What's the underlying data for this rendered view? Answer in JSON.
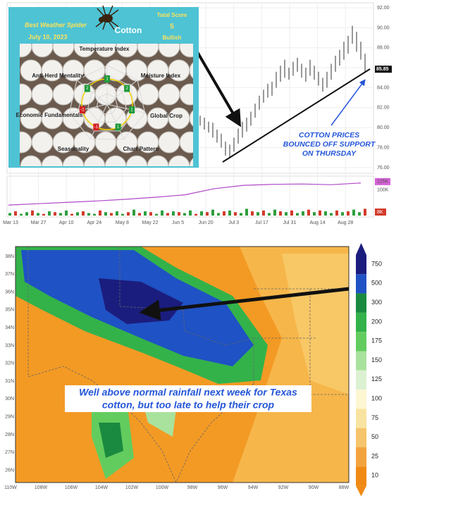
{
  "spider": {
    "title": "Best Weather Spider",
    "date": "July 10, 2023",
    "commodity": "Cotton",
    "score_label": "Total Score",
    "score": "5",
    "verdict": "Bullish",
    "factors": [
      {
        "name": "Temperature Index",
        "score": "1"
      },
      {
        "name": "Moisture Index",
        "score": "2"
      },
      {
        "name": "Global Crop",
        "score": "1"
      },
      {
        "name": "Chart Pattern",
        "score": "1"
      },
      {
        "name": "Seasonality",
        "score": "-1"
      },
      {
        "name": "Economic Fundamentals",
        "score": "-1"
      },
      {
        "name": "Anti-Herd Mentality",
        "score": "2"
      }
    ]
  },
  "price_chart": {
    "ylim": [
      75.5,
      92.5
    ],
    "yticks": [
      {
        "value": 92,
        "label": "92.00"
      },
      {
        "value": 90,
        "label": "90.00"
      },
      {
        "value": 88,
        "label": "88.00"
      },
      {
        "value": 86,
        "label": "86.00"
      },
      {
        "value": 84,
        "label": "84.00"
      },
      {
        "value": 82,
        "label": "82.00"
      },
      {
        "value": 80,
        "label": "80.00"
      },
      {
        "value": 78,
        "label": "78.00"
      },
      {
        "value": 76,
        "label": "76.00"
      }
    ],
    "last": {
      "value": 85.85,
      "label": "85.85"
    },
    "bars": [
      [
        80.2,
        81.2
      ],
      [
        79.8,
        81
      ],
      [
        79.5,
        80.6
      ],
      [
        79,
        80.5
      ],
      [
        78.5,
        79.8
      ],
      [
        78,
        79.4
      ],
      [
        77.2,
        78.6
      ],
      [
        77,
        78.3
      ],
      [
        77.6,
        79
      ],
      [
        78.4,
        79.9
      ],
      [
        79,
        80.6
      ],
      [
        79.6,
        81
      ],
      [
        80.2,
        81.6
      ],
      [
        81,
        82.4
      ],
      [
        81.8,
        83.2
      ],
      [
        82.5,
        83.8
      ],
      [
        83,
        84.4
      ],
      [
        83.2,
        84.6
      ],
      [
        84,
        85.6
      ],
      [
        84.6,
        86.2
      ],
      [
        85,
        86.8
      ],
      [
        84.8,
        86
      ],
      [
        85.2,
        86.6
      ],
      [
        85.6,
        87
      ],
      [
        85,
        86.4
      ],
      [
        84.6,
        86
      ],
      [
        85.2,
        86.8
      ],
      [
        84.8,
        86.2
      ],
      [
        84.2,
        85.6
      ],
      [
        83.6,
        85
      ],
      [
        84,
        85.6
      ],
      [
        84.8,
        86.4
      ],
      [
        85.6,
        87.2
      ],
      [
        86.2,
        87.8
      ],
      [
        86.8,
        88.6
      ],
      [
        87.4,
        89.2
      ],
      [
        88.4,
        90.2
      ],
      [
        87.6,
        89.6
      ],
      [
        86.8,
        88.6
      ],
      [
        85.6,
        87.4
      ]
    ],
    "annotation": [
      "COTTON PRICES",
      "BOUNCED OFF SUPPORT",
      "ON THURSDAY"
    ],
    "dates": [
      "Mar 13",
      "Mar 27",
      "Apr 10",
      "Apr 24",
      "May 8",
      "May 22",
      "Jun 5",
      "Jun 20",
      "Jul 3",
      "Jul 17",
      "Jul 31",
      "Aug 14",
      "Aug 28"
    ],
    "oi_ylim": [
      50,
      135
    ],
    "oi_labels": [
      {
        "value": 125,
        "label": "125K"
      },
      {
        "value": 100,
        "label": "100K"
      }
    ],
    "open_interest": [
      56,
      60,
      64,
      68,
      73,
      79,
      86,
      104,
      114,
      117,
      118,
      116,
      121
    ],
    "volume_label": "8K",
    "volume_max": 10,
    "volume": [
      3,
      5,
      2,
      4,
      6,
      3,
      2,
      5,
      4,
      3,
      6,
      2,
      4,
      5,
      3,
      2,
      6,
      4,
      3,
      5,
      2,
      4,
      7,
      3,
      5,
      4,
      2,
      6,
      3,
      5,
      4,
      3,
      6,
      2,
      5,
      4,
      7,
      3,
      5,
      6,
      4,
      3,
      8,
      5,
      4,
      6,
      3,
      7,
      5,
      4,
      6,
      3,
      5,
      7,
      4,
      6,
      5,
      3,
      6,
      4,
      5,
      7,
      4,
      8
    ],
    "volume_up": [
      1,
      0,
      1,
      1,
      0,
      1,
      0,
      1,
      0,
      1,
      1,
      0,
      1,
      0,
      1,
      1,
      0,
      1,
      0,
      1,
      1,
      0,
      1,
      0,
      1,
      0,
      1,
      1,
      0,
      1,
      0,
      1,
      1,
      0,
      1,
      0,
      1,
      1,
      0,
      1,
      0,
      1,
      1,
      0,
      1,
      0,
      1,
      1,
      0,
      1,
      0,
      1,
      1,
      0,
      1,
      0,
      1,
      1,
      0,
      1,
      0,
      1,
      1,
      0
    ]
  },
  "map": {
    "lons": [
      "110W",
      "108W",
      "106W",
      "104W",
      "102W",
      "100W",
      "98W",
      "96W",
      "94W",
      "92W",
      "90W",
      "88W"
    ],
    "lats": [
      "38N",
      "37N",
      "36N",
      "35N",
      "34N",
      "33N",
      "32N",
      "31N",
      "30N",
      "29N",
      "28N",
      "27N",
      "26N"
    ],
    "caption": [
      "Well above normal rainfall next week for Texas",
      "cotton, but too late to help their crop"
    ],
    "legend": [
      {
        "label": "750",
        "color": "#1b1d7e"
      },
      {
        "label": "500",
        "color": "#1f52c4"
      },
      {
        "label": "300",
        "color": "#1a8a40"
      },
      {
        "label": "200",
        "color": "#33b24a"
      },
      {
        "label": "175",
        "color": "#63cc5e"
      },
      {
        "label": "150",
        "color": "#a9e29d"
      },
      {
        "label": "125",
        "color": "#dcf1d2"
      },
      {
        "label": "100",
        "color": "#fcf6d2"
      },
      {
        "label": "75",
        "color": "#f9e3a0"
      },
      {
        "label": "50",
        "color": "#f6c46c"
      },
      {
        "label": "25",
        "color": "#f3a33e"
      },
      {
        "label": "10",
        "color": "#f08a14"
      }
    ]
  }
}
